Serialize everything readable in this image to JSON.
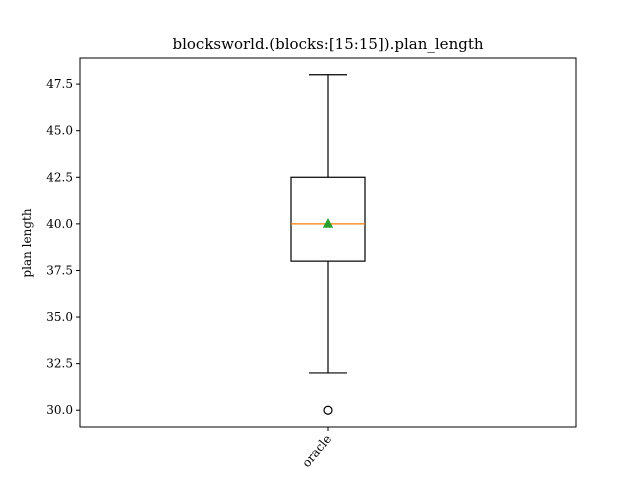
{
  "chart_data": {
    "type": "box",
    "title": "blocksworld.(blocks:[15:15]).plan_length",
    "xlabel": "",
    "ylabel": "plan length",
    "ylim": [
      29.1,
      48.9
    ],
    "yticks": [
      "30.0",
      "32.5",
      "35.0",
      "37.5",
      "40.0",
      "42.5",
      "45.0",
      "47.5"
    ],
    "grid": false,
    "categories": [
      "oracle"
    ],
    "boxes": [
      {
        "label": "oracle",
        "whisker_low": 32,
        "q1": 38,
        "median": 40,
        "q3": 42.5,
        "whisker_high": 48,
        "mean": 40,
        "outliers": [
          30
        ]
      }
    ],
    "colors": {
      "median": "#ff7f0e",
      "mean": "#2ca02c",
      "box": "#000000"
    }
  }
}
